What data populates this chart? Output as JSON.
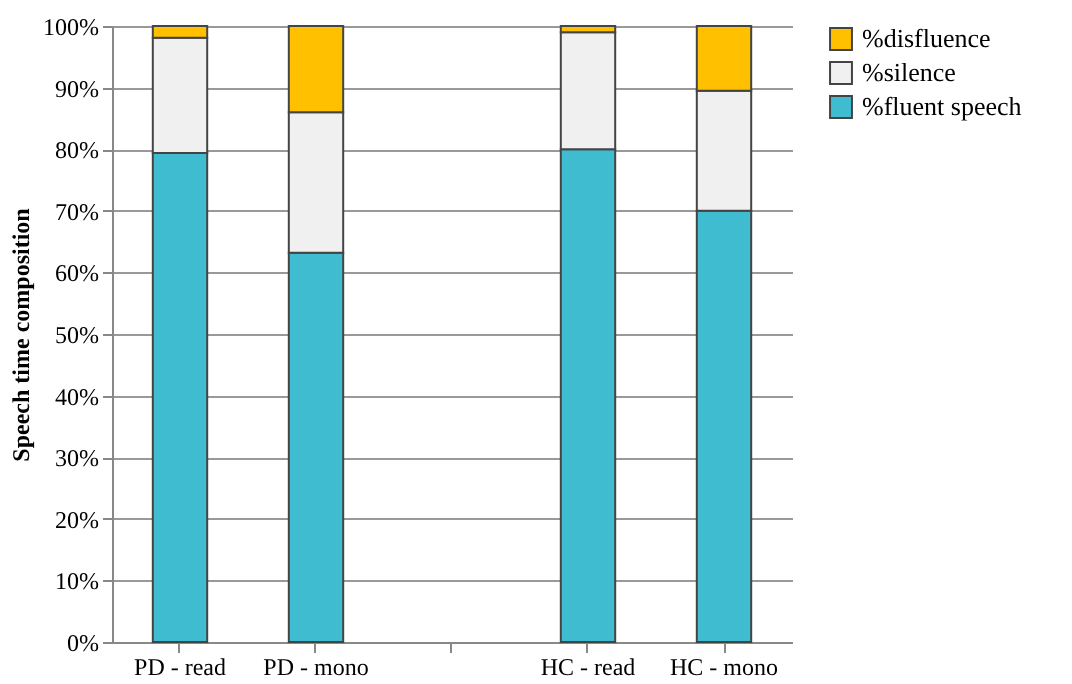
{
  "chart_data": {
    "type": "bar",
    "stacked": true,
    "ylabel": "Speech time composition",
    "categories": [
      "PD - read",
      "PD - mono",
      null,
      "HC - read",
      "HC - mono"
    ],
    "series": [
      {
        "name": "%fluent speech",
        "color": "#3fbcd0",
        "values": [
          79.4,
          63.2,
          null,
          80,
          70
        ]
      },
      {
        "name": "%silence",
        "color": "#f0f0f0",
        "values": [
          18.7,
          22.8,
          null,
          19,
          19.5
        ]
      },
      {
        "name": "%disfluence",
        "color": "#ffc000",
        "values": [
          1.9,
          14,
          null,
          1,
          10.5
        ]
      }
    ],
    "ylim": [
      0,
      100
    ],
    "yticks": [
      {
        "value": 0,
        "label": "0%"
      },
      {
        "value": 10,
        "label": "10%"
      },
      {
        "value": 20,
        "label": "20%"
      },
      {
        "value": 30,
        "label": "30%"
      },
      {
        "value": 40,
        "label": "40%"
      },
      {
        "value": 50,
        "label": "50%"
      },
      {
        "value": 60,
        "label": "60%"
      },
      {
        "value": 70,
        "label": "70%"
      },
      {
        "value": 80,
        "label": "80%"
      },
      {
        "value": 90,
        "label": "90%"
      },
      {
        "value": 100,
        "label": "100%"
      }
    ],
    "grid": "y",
    "legend": "right"
  }
}
